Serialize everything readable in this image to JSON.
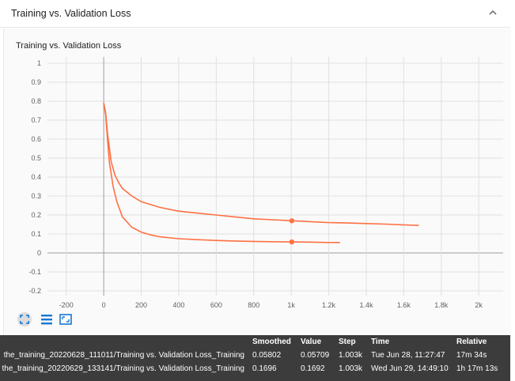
{
  "panel": {
    "header_title": "Training vs. Validation Loss",
    "collapse_icon": "chevron-up-icon"
  },
  "chart_data": {
    "type": "line",
    "title": "Training vs. Validation Loss",
    "xlabel": "",
    "ylabel": "",
    "xlim": [
      -300,
      2130
    ],
    "ylim": [
      -0.2,
      1
    ],
    "x_ticks": [
      -200,
      0,
      200,
      400,
      600,
      800,
      1000,
      1200,
      1400,
      1600,
      1800,
      2000
    ],
    "x_tick_labels": [
      "-200",
      "0",
      "200",
      "400",
      "600",
      "800",
      "1k",
      "1.2k",
      "1.4k",
      "1.6k",
      "1.8k",
      "2k"
    ],
    "y_ticks": [
      -0.2,
      -0.1,
      0,
      0.1,
      0.2,
      0.3,
      0.4,
      0.5,
      0.6,
      0.7,
      0.8,
      0.9,
      1
    ],
    "y_tick_labels": [
      "-0.2",
      "-0.1",
      "0",
      "0.1",
      "0.2",
      "0.3",
      "0.4",
      "0.5",
      "0.6",
      "0.7",
      "0.8",
      "0.9",
      "1"
    ],
    "grid": true,
    "series": [
      {
        "name": "the_training_20220629_133141/Training vs. Validation Loss_Training",
        "color": "#ff7043",
        "x": [
          0,
          10,
          20,
          40,
          60,
          80,
          100,
          150,
          200,
          300,
          400,
          500,
          600,
          700,
          800,
          900,
          1000,
          1100,
          1200,
          1300,
          1400,
          1500,
          1600,
          1680
        ],
        "y": [
          0.79,
          0.74,
          0.63,
          0.48,
          0.41,
          0.37,
          0.34,
          0.3,
          0.27,
          0.24,
          0.22,
          0.21,
          0.2,
          0.19,
          0.18,
          0.175,
          0.17,
          0.165,
          0.16,
          0.158,
          0.155,
          0.152,
          0.148,
          0.145
        ],
        "marker": {
          "x": 1003,
          "y": 0.1696
        }
      },
      {
        "name": "the_training_20220628_111011/Training vs. Validation Loss_Training",
        "color": "#ff7043",
        "x": [
          0,
          10,
          20,
          30,
          50,
          70,
          100,
          150,
          200,
          250,
          300,
          400,
          500,
          600,
          700,
          800,
          900,
          1000,
          1100,
          1200,
          1260
        ],
        "y": [
          0.79,
          0.73,
          0.6,
          0.48,
          0.35,
          0.27,
          0.19,
          0.135,
          0.11,
          0.095,
          0.085,
          0.075,
          0.07,
          0.066,
          0.063,
          0.061,
          0.059,
          0.058,
          0.057,
          0.055,
          0.055
        ],
        "marker": {
          "x": 1003,
          "y": 0.05802
        }
      }
    ]
  },
  "toolbar": {
    "fit_icon": "fit-domain-icon",
    "series_icon": "toggle-series-icon",
    "zoom_icon": "zoom-box-icon"
  },
  "tooltip": {
    "headers": {
      "smoothed": "Smoothed",
      "value": "Value",
      "step": "Step",
      "time": "Time",
      "relative": "Relative"
    },
    "rows": [
      {
        "run": "the_training_20220628_111011/Training vs. Validation Loss_Training",
        "smoothed": "0.05802",
        "value": "0.05709",
        "step": "1.003k",
        "time": "Tue Jun 28, 11:27:47",
        "relative": "17m 34s"
      },
      {
        "run": "the_training_20220629_133141/Training vs. Validation Loss_Training",
        "smoothed": "0.1696",
        "value": "0.1692",
        "step": "1.003k",
        "time": "Wed Jun 29, 14:49:10",
        "relative": "1h 17m 13s"
      }
    ]
  }
}
